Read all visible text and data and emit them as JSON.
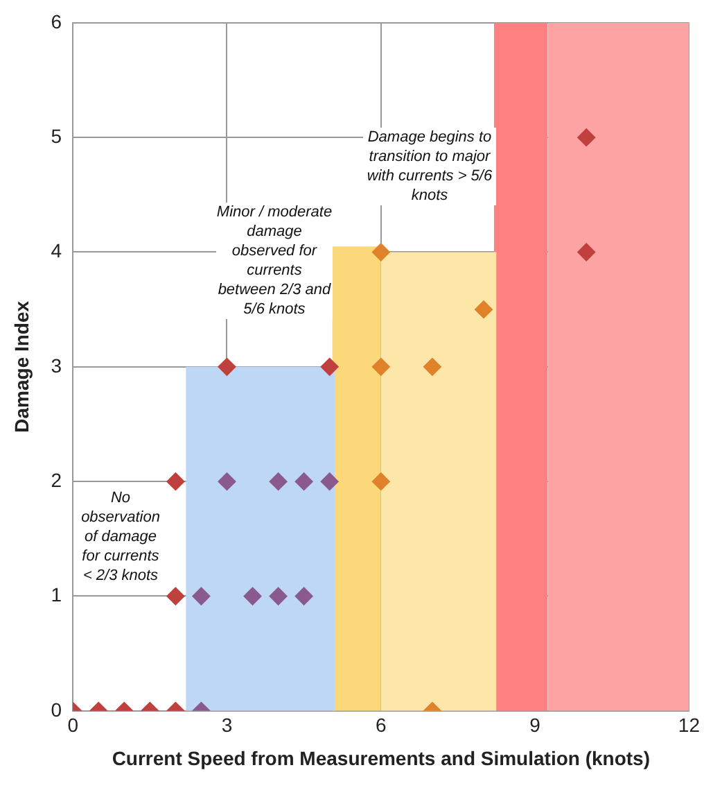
{
  "chart_data": {
    "type": "scatter",
    "xlabel": "Current Speed from Measurements and Simulation (knots)",
    "ylabel": "Damage Index",
    "xlim": [
      0,
      12
    ],
    "xticks": [
      0,
      3,
      6,
      9,
      12
    ],
    "ylim": [
      0,
      6
    ],
    "yticks": [
      0,
      1,
      2,
      3,
      4,
      5,
      6
    ],
    "grid": true,
    "legend": false,
    "marker": "diamond",
    "annotations": [
      "No observation of damage for currents < 2/3 knots",
      "Minor / moderate damage observed for currents between 2/3 and 5/6 knots",
      "Damage begins to transition to major with currents > 5/6 knots"
    ],
    "series": [
      {
        "type": "area",
        "marker": "none",
        "color": "#bdd7f5",
        "x": [
          2.2,
          5.1
        ],
        "values": [
          3,
          3
        ]
      },
      {
        "type": "area",
        "marker": "none",
        "color": "#fbd97a",
        "x": [
          5.05,
          6
        ],
        "values": [
          4.05,
          4.05
        ]
      },
      {
        "type": "area",
        "marker": "none",
        "color": "#fde7a8",
        "x": [
          6,
          8.25
        ],
        "values": [
          4,
          4
        ]
      },
      {
        "type": "area",
        "marker": "none",
        "color": "#ff8080",
        "x": [
          8.2,
          9.25
        ],
        "values": [
          6,
          6
        ]
      },
      {
        "type": "area",
        "marker": "none",
        "color": "#fda3a3",
        "x": [
          9.25,
          12
        ],
        "values": [
          6,
          6
        ]
      },
      {
        "color": "#c0403d",
        "x": [
          0,
          0.5,
          1,
          1.5,
          2,
          2,
          2,
          3,
          5,
          10,
          10
        ],
        "values": [
          0,
          0,
          0,
          0,
          0,
          1,
          2,
          3,
          3,
          4,
          5
        ]
      },
      {
        "color": "#8a5a8e",
        "x": [
          2.5,
          2.5,
          3.5,
          4,
          4.5,
          3,
          4,
          4.5,
          5
        ],
        "values": [
          0,
          1,
          1,
          1,
          1,
          2,
          2,
          2,
          2
        ]
      },
      {
        "color": "#e0822a",
        "x": [
          7,
          6,
          6,
          7,
          8,
          6
        ],
        "values": [
          0,
          2,
          3,
          3,
          3.5,
          4
        ]
      }
    ]
  }
}
